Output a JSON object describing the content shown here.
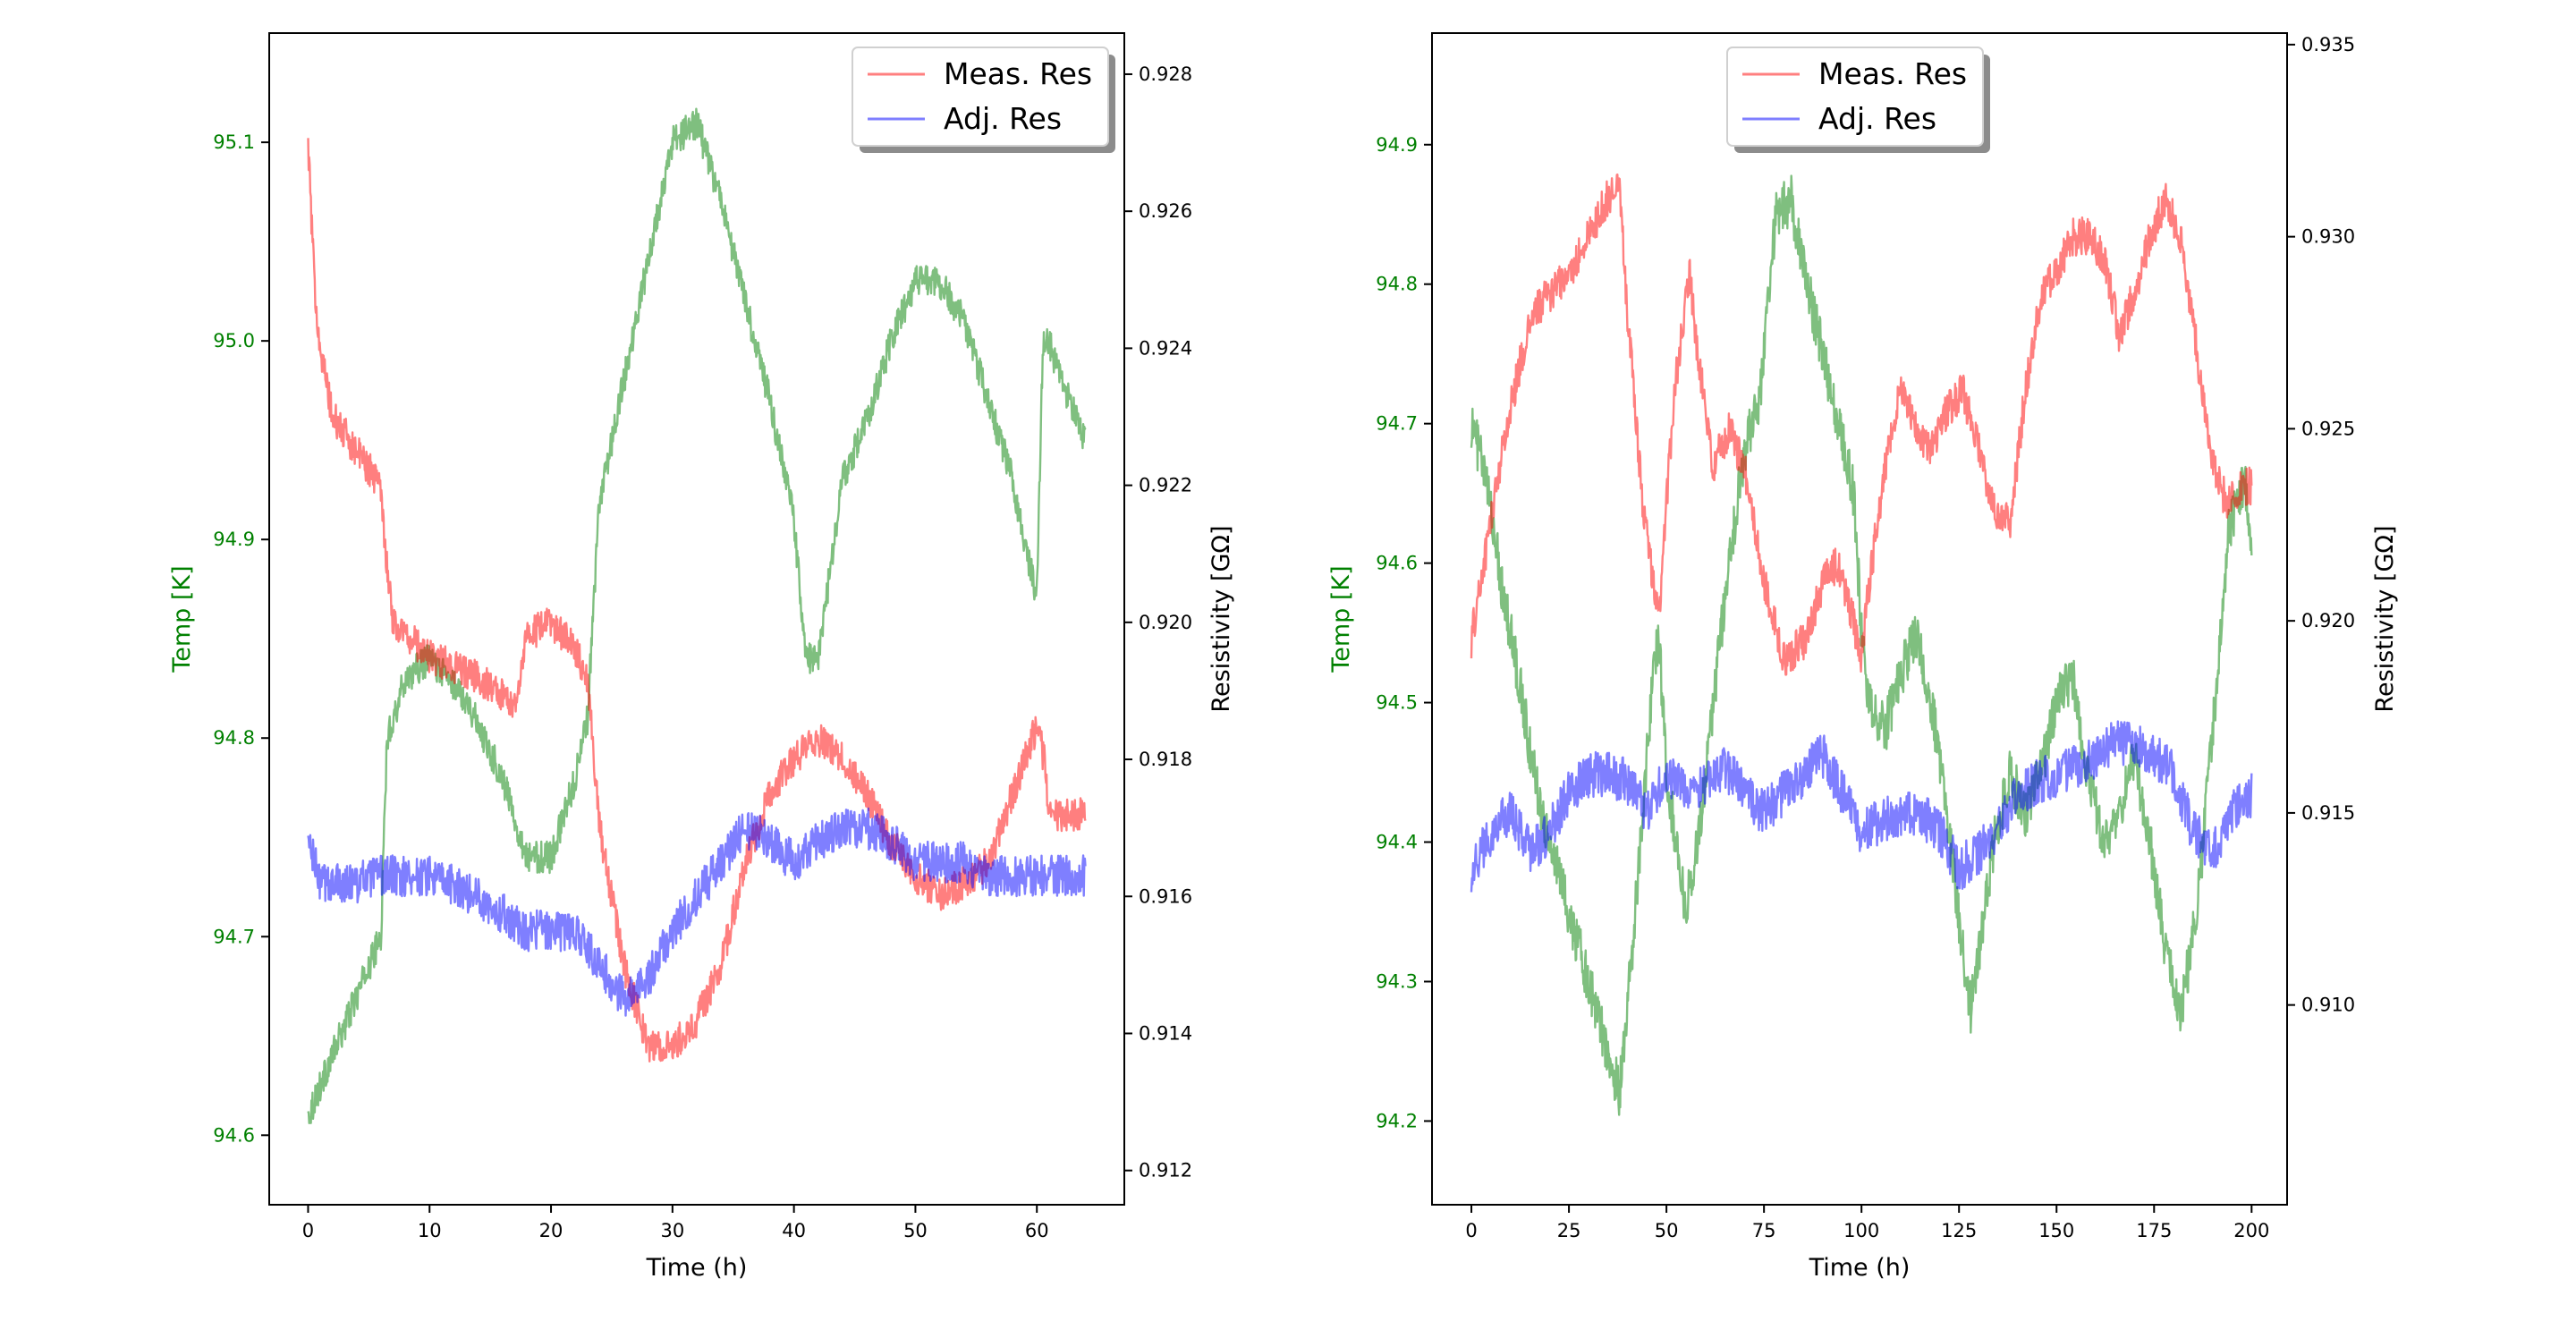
{
  "colors": {
    "temp": "#008000",
    "meas": "#ff0000",
    "adj": "#0000ff"
  },
  "chart_data": [
    {
      "type": "line",
      "xlabel": "Time (h)",
      "ylabel_left": "Temp [K]",
      "ylabel_right": "Resistivity [GΩ]",
      "xlim": [
        -3.2,
        67.2
      ],
      "ylim_left": [
        94.565,
        95.155
      ],
      "ylim_right": [
        0.9115,
        0.9286
      ],
      "x_ticks": [
        0,
        10,
        20,
        30,
        40,
        50,
        60
      ],
      "x_tick_labels": [
        "0",
        "10",
        "20",
        "30",
        "40",
        "50",
        "60"
      ],
      "y_left_ticks": [
        94.6,
        94.7,
        94.8,
        94.9,
        95.0,
        95.1
      ],
      "y_left_tick_labels": [
        "94.6",
        "94.7",
        "94.8",
        "94.9",
        "95.0",
        "95.1"
      ],
      "y_right_ticks": [
        0.912,
        0.914,
        0.916,
        0.918,
        0.92,
        0.922,
        0.924,
        0.926,
        0.928
      ],
      "y_right_tick_labels": [
        "0.912",
        "0.914",
        "0.916",
        "0.918",
        "0.920",
        "0.922",
        "0.924",
        "0.926",
        "0.928"
      ],
      "legend": {
        "placement": "top-right",
        "entries": [
          "Meas. Res",
          "Adj. Res"
        ]
      },
      "series": [
        {
          "name": "Temp",
          "axis": "left",
          "color": "#008000",
          "x": [
            0,
            2,
            4,
            6,
            6.5,
            8,
            10,
            13,
            16,
            18,
            20,
            22,
            23,
            24,
            26,
            28,
            30,
            32,
            34,
            36,
            38,
            40,
            41,
            42,
            44,
            46,
            48,
            50,
            52,
            54,
            56,
            58,
            60,
            60.5,
            61,
            62,
            64
          ],
          "y": [
            94.61,
            94.64,
            94.67,
            94.7,
            94.8,
            94.83,
            94.84,
            94.82,
            94.78,
            94.74,
            94.74,
            94.78,
            94.81,
            94.92,
            94.98,
            95.04,
            95.1,
            95.11,
            95.07,
            95.02,
            94.97,
            94.91,
            94.84,
            94.84,
            94.93,
            94.96,
            95.0,
            95.03,
            95.03,
            95.01,
            94.97,
            94.93,
            94.87,
            95.0,
            95.0,
            94.98,
            94.95
          ],
          "noise": 0.008
        },
        {
          "name": "Meas. Res",
          "axis": "right",
          "color": "#ff0000",
          "x": [
            0,
            0.5,
            1,
            2,
            4,
            6,
            6.4,
            7,
            10,
            14,
            17,
            18,
            20,
            22,
            23,
            24,
            26,
            28,
            30,
            32,
            34,
            36,
            38,
            40,
            42,
            44,
            46,
            48,
            50,
            52,
            54,
            56,
            58,
            60,
            60.6,
            61,
            62,
            64
          ],
          "y": [
            0.927,
            0.925,
            0.924,
            0.923,
            0.9225,
            0.922,
            0.921,
            0.92,
            0.9195,
            0.9192,
            0.9188,
            0.9198,
            0.92,
            0.9196,
            0.9192,
            0.917,
            0.915,
            0.9138,
            0.9138,
            0.9142,
            0.915,
            0.9165,
            0.9175,
            0.918,
            0.9183,
            0.918,
            0.9175,
            0.9168,
            0.9163,
            0.916,
            0.9162,
            0.9165,
            0.9175,
            0.9185,
            0.918,
            0.9172,
            0.9172,
            0.9172
          ],
          "noise": 0.00025
        },
        {
          "name": "Adj. Res",
          "axis": "right",
          "color": "#0000ff",
          "x": [
            0,
            1,
            4,
            6,
            10,
            14,
            18,
            20,
            22,
            24,
            26,
            28,
            30,
            32,
            34,
            36,
            38,
            40,
            42,
            44,
            46,
            48,
            50,
            52,
            54,
            56,
            58,
            60,
            62,
            64
          ],
          "y": [
            0.9168,
            0.9162,
            0.9162,
            0.9163,
            0.9163,
            0.916,
            0.9155,
            0.9155,
            0.9155,
            0.915,
            0.9145,
            0.9148,
            0.9155,
            0.916,
            0.9165,
            0.917,
            0.9168,
            0.9165,
            0.9168,
            0.917,
            0.917,
            0.9168,
            0.9165,
            0.9165,
            0.9165,
            0.9163,
            0.9163,
            0.9163,
            0.9163,
            0.9163
          ],
          "noise": 0.0003
        }
      ]
    },
    {
      "type": "line",
      "xlabel": "Time (h)",
      "ylabel_left": "Temp [K]",
      "ylabel_right": "Resistivity [GΩ]",
      "xlim": [
        -10.1,
        209.1
      ],
      "ylim_left": [
        94.14,
        94.98
      ],
      "ylim_right": [
        0.9048,
        0.9353
      ],
      "x_ticks": [
        0,
        25,
        50,
        75,
        100,
        125,
        150,
        175,
        200
      ],
      "x_tick_labels": [
        "0",
        "25",
        "50",
        "75",
        "100",
        "125",
        "150",
        "175",
        "200"
      ],
      "y_left_ticks": [
        94.2,
        94.3,
        94.4,
        94.5,
        94.6,
        94.7,
        94.8,
        94.9
      ],
      "y_left_tick_labels": [
        "94.2",
        "94.3",
        "94.4",
        "94.5",
        "94.6",
        "94.7",
        "94.8",
        "94.9"
      ],
      "y_right_ticks": [
        0.91,
        0.915,
        0.92,
        0.925,
        0.93,
        0.935
      ],
      "y_right_tick_labels": [
        "0.910",
        "0.915",
        "0.920",
        "0.925",
        "0.930",
        "0.935"
      ],
      "legend": {
        "placement": "top-center",
        "entries": [
          "Meas. Res",
          "Adj. Res"
        ]
      },
      "series": [
        {
          "name": "Temp",
          "axis": "left",
          "color": "#008000",
          "x": [
            0,
            2,
            5,
            8,
            12,
            16,
            20,
            25,
            30,
            35,
            38,
            42,
            46,
            48,
            50,
            55,
            58,
            62,
            66,
            70,
            74,
            78,
            82,
            86,
            90,
            94,
            98,
            100,
            102,
            106,
            110,
            114,
            118,
            122,
            126,
            128,
            130,
            134,
            138,
            142,
            146,
            150,
            154,
            158,
            162,
            166,
            170,
            174,
            178,
            182,
            186,
            190,
            194,
            198,
            200
          ],
          "y": [
            94.7,
            94.68,
            94.64,
            94.58,
            94.52,
            94.45,
            94.4,
            94.35,
            94.3,
            94.25,
            94.22,
            94.35,
            94.5,
            94.55,
            94.45,
            94.35,
            94.4,
            94.5,
            94.6,
            94.68,
            94.72,
            94.85,
            94.86,
            94.8,
            94.75,
            94.7,
            94.65,
            94.55,
            94.5,
            94.48,
            94.52,
            94.55,
            94.5,
            94.42,
            94.32,
            94.28,
            94.32,
            94.4,
            94.45,
            94.42,
            94.45,
            94.5,
            94.52,
            94.45,
            94.4,
            94.42,
            94.46,
            94.4,
            94.32,
            94.28,
            94.35,
            94.48,
            94.62,
            94.66,
            94.62
          ],
          "noise": 0.018
        },
        {
          "name": "Meas. Res",
          "axis": "right",
          "color": "#ff0000",
          "x": [
            0,
            4,
            8,
            12,
            16,
            20,
            25,
            30,
            35,
            38,
            40,
            44,
            48,
            52,
            56,
            58,
            62,
            66,
            70,
            75,
            80,
            86,
            90,
            94,
            98,
            100,
            102,
            106,
            110,
            114,
            118,
            122,
            126,
            130,
            134,
            138,
            142,
            146,
            150,
            154,
            158,
            162,
            166,
            170,
            174,
            178,
            182,
            186,
            190,
            194,
            198,
            200
          ],
          "y": [
            0.9195,
            0.922,
            0.9245,
            0.9265,
            0.928,
            0.9285,
            0.929,
            0.93,
            0.931,
            0.9315,
            0.928,
            0.923,
            0.92,
            0.926,
            0.929,
            0.927,
            0.924,
            0.925,
            0.924,
            0.921,
            0.919,
            0.9195,
            0.921,
            0.9215,
            0.92,
            0.919,
            0.921,
            0.924,
            0.926,
            0.925,
            0.9245,
            0.9255,
            0.926,
            0.9245,
            0.923,
            0.9225,
            0.926,
            0.9285,
            0.929,
            0.93,
            0.93,
            0.9295,
            0.9275,
            0.9285,
            0.93,
            0.931,
            0.93,
            0.927,
            0.924,
            0.923,
            0.9235,
            0.9235
          ],
          "noise": 0.0005
        },
        {
          "name": "Adj. Res",
          "axis": "right",
          "color": "#0000ff",
          "x": [
            0,
            5,
            10,
            15,
            20,
            25,
            30,
            35,
            40,
            45,
            50,
            55,
            60,
            65,
            70,
            75,
            80,
            85,
            90,
            95,
            100,
            105,
            110,
            115,
            120,
            125,
            130,
            135,
            140,
            145,
            150,
            155,
            160,
            165,
            170,
            175,
            180,
            185,
            190,
            195,
            200
          ],
          "y": [
            0.9135,
            0.9145,
            0.915,
            0.914,
            0.9145,
            0.9155,
            0.916,
            0.916,
            0.9158,
            0.915,
            0.916,
            0.9155,
            0.9158,
            0.9162,
            0.9155,
            0.915,
            0.9155,
            0.916,
            0.9165,
            0.9155,
            0.9145,
            0.9148,
            0.915,
            0.915,
            0.9145,
            0.9135,
            0.914,
            0.9145,
            0.9155,
            0.9158,
            0.916,
            0.9162,
            0.9165,
            0.9168,
            0.9168,
            0.9165,
            0.916,
            0.9145,
            0.914,
            0.915,
            0.9155
          ],
          "noise": 0.0006
        }
      ]
    }
  ]
}
